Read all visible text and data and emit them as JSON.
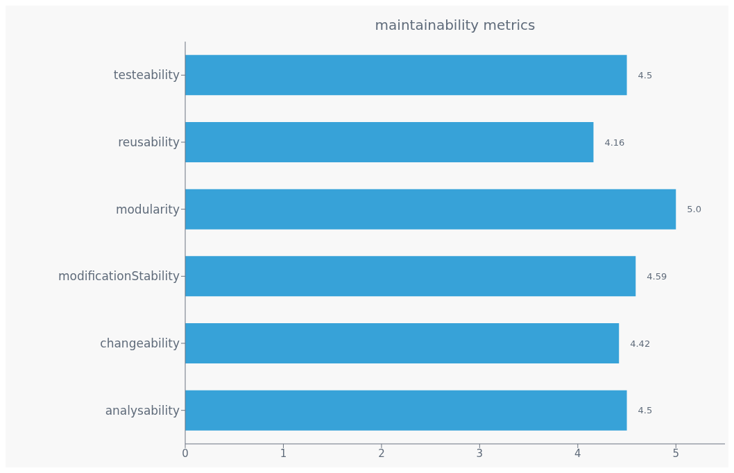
{
  "chart_data": {
    "type": "bar",
    "orientation": "horizontal",
    "title": "maintainability metrics",
    "categories": [
      "testeability",
      "reusability",
      "modularity",
      "modificationStability",
      "changeability",
      "analysability"
    ],
    "values": [
      4.5,
      4.16,
      5.0,
      4.59,
      4.42,
      4.5
    ],
    "value_labels": [
      "4.5",
      "4.16",
      "5.0",
      "4.59",
      "4.42",
      "4.5"
    ],
    "color": "#37a2d8",
    "xlim": [
      0,
      5.5
    ],
    "xticks": [
      0,
      1,
      2,
      3,
      4,
      5
    ],
    "grid": false,
    "legend": false
  }
}
